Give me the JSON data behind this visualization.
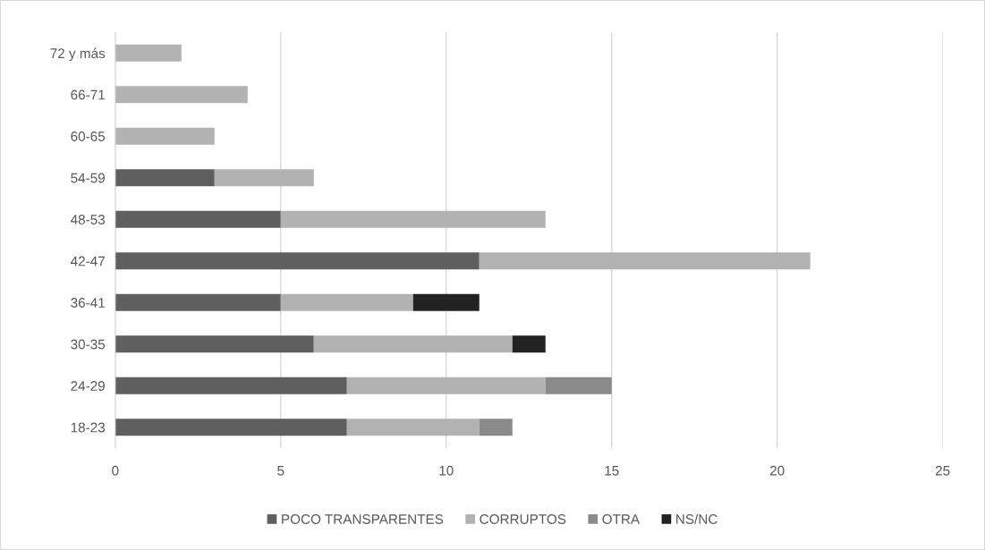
{
  "chart_data": {
    "type": "bar",
    "orientation": "horizontal",
    "stacked": true,
    "categories": [
      "72 y más",
      "66-71",
      "60-65",
      "54-59",
      "48-53",
      "42-47",
      "36-41",
      "30-35",
      "24-29",
      "18-23"
    ],
    "series": [
      {
        "name": "POCO TRANSPARENTES",
        "color": "#5f5f5f",
        "values": [
          0,
          0,
          0,
          3,
          5,
          11,
          5,
          6,
          7,
          7
        ]
      },
      {
        "name": "CORRUPTOS",
        "color": "#b2b2b2",
        "values": [
          2,
          4,
          3,
          3,
          8,
          10,
          4,
          6,
          6,
          4
        ]
      },
      {
        "name": "OTRA",
        "color": "#8a8a8a",
        "values": [
          0,
          0,
          0,
          0,
          0,
          0,
          0,
          0,
          2,
          1
        ]
      },
      {
        "name": "NS/NC",
        "color": "#222222",
        "values": [
          0,
          0,
          0,
          0,
          0,
          0,
          2,
          1,
          0,
          0
        ]
      }
    ],
    "xlim": [
      0,
      25
    ],
    "xticks": [
      0,
      5,
      10,
      15,
      20,
      25
    ],
    "grid": "x",
    "legend": "bottom"
  }
}
